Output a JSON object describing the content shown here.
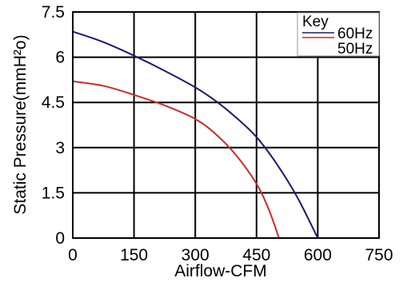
{
  "chart_data": {
    "type": "line",
    "title": "",
    "xlabel": "Airflow-CFM",
    "ylabel": "Static Pressure(mmH²o)",
    "xlim": [
      0,
      750
    ],
    "ylim": [
      0,
      7.5
    ],
    "x_ticks": [
      "0",
      "150",
      "300",
      "450",
      "600",
      "750"
    ],
    "y_ticks": [
      "0",
      "1.5",
      "3",
      "4.5",
      "6",
      "7.5"
    ],
    "grid": true,
    "legend": {
      "title": "Key",
      "placement": "top-right"
    },
    "series": [
      {
        "name": "60Hz",
        "color": "#1a1a6e",
        "x": [
          0,
          75,
          150,
          225,
          300,
          350,
          400,
          450,
          500,
          550,
          600
        ],
        "y": [
          6.85,
          6.5,
          6.05,
          5.55,
          5.0,
          4.55,
          4.0,
          3.35,
          2.45,
          1.35,
          0
        ]
      },
      {
        "name": "50Hz",
        "color": "#cc2a2a",
        "x": [
          0,
          75,
          150,
          225,
          300,
          350,
          400,
          450,
          480,
          505
        ],
        "y": [
          5.2,
          5.05,
          4.75,
          4.4,
          3.95,
          3.45,
          2.75,
          1.8,
          0.95,
          0
        ]
      }
    ]
  }
}
